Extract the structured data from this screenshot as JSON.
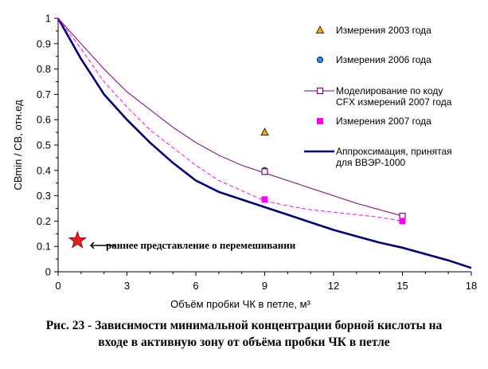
{
  "caption": {
    "line1": "Рис. 23 - Зависимости минимальной концентрации борной кислоты на",
    "line2": "входе в активную зону от объёма пробки ЧК в петле"
  },
  "note": {
    "arrow": "🡐",
    "text": "раннее представление о перемешивании"
  },
  "colors": {
    "m2003": "#FFA500",
    "m2006": "#1E90FF",
    "cfx": "#800080",
    "m2007": "#FF00FF",
    "approx": "#000080",
    "star": "#E31E1E"
  },
  "chart_data": {
    "type": "line",
    "xlabel": "Объём пробки ЧК в петле, м³",
    "ylabel": "СBmin / СB, отн.ед",
    "xlim": [
      0,
      18
    ],
    "ylim": [
      0,
      1
    ],
    "xticks": [
      "0",
      "3",
      "6",
      "9",
      "12",
      "15",
      "18"
    ],
    "yticks": [
      "0",
      "0.1",
      "0.2",
      "0.3",
      "0.4",
      "0.5",
      "0.6",
      "0.7",
      "0.8",
      "0.9",
      "1"
    ],
    "legend": [
      {
        "key": "m2003",
        "label": "Измерения 2003 года",
        "marker": "triangle"
      },
      {
        "key": "m2006",
        "label": "Измерения 2006 года",
        "marker": "circle"
      },
      {
        "key": "cfx",
        "label": "Моделирование по коду",
        "label2": "CFX измерений 2007 года",
        "marker": "open-square"
      },
      {
        "key": "m2007",
        "label": "Измерения 2007 года",
        "marker": "square"
      },
      {
        "key": "approx",
        "label": "Аппроксимация, принятая",
        "label2": "для ВВЭР-1000",
        "marker": "line"
      }
    ],
    "series": [
      {
        "key": "approx",
        "name": "Аппроксимация, принятая для ВВЭР-1000",
        "x": [
          0,
          0.5,
          1,
          1.5,
          2,
          3,
          4,
          5,
          6,
          7,
          8,
          9,
          10,
          11,
          12,
          13,
          14,
          15,
          16,
          17,
          18
        ],
        "y": [
          1,
          0.92,
          0.84,
          0.77,
          0.7,
          0.6,
          0.51,
          0.43,
          0.36,
          0.315,
          0.285,
          0.255,
          0.225,
          0.195,
          0.165,
          0.14,
          0.115,
          0.095,
          0.07,
          0.045,
          0.015
        ]
      },
      {
        "key": "cfx",
        "name": "Моделирование по коду CFX измерений 2007 года",
        "x": [
          0,
          1,
          2,
          3,
          4,
          5,
          6,
          7,
          8,
          9,
          10,
          11,
          12,
          13,
          14,
          15
        ],
        "y": [
          1,
          0.9,
          0.8,
          0.71,
          0.64,
          0.57,
          0.51,
          0.46,
          0.42,
          0.39,
          0.36,
          0.33,
          0.3,
          0.27,
          0.245,
          0.22
        ]
      },
      {
        "key": "m2007",
        "name": "Измерения 2007 года",
        "x": [
          0,
          1,
          2,
          3,
          4,
          5,
          6,
          7,
          8,
          9,
          10,
          11,
          12,
          13,
          14,
          15
        ],
        "y": [
          1,
          0.88,
          0.75,
          0.65,
          0.56,
          0.49,
          0.42,
          0.36,
          0.32,
          0.28,
          0.26,
          0.245,
          0.235,
          0.225,
          0.215,
          0.2
        ]
      }
    ],
    "points": [
      {
        "key": "m2003",
        "marker": "triangle",
        "x": 9,
        "y": 0.55
      },
      {
        "key": "m2006",
        "marker": "circle",
        "x": 9,
        "y": 0.4
      },
      {
        "key": "cfx",
        "marker": "open-square",
        "x": 9,
        "y": 0.395
      },
      {
        "key": "cfx",
        "marker": "open-square",
        "x": 15,
        "y": 0.22
      },
      {
        "key": "m2007",
        "marker": "square",
        "x": 9,
        "y": 0.285
      },
      {
        "key": "m2007",
        "marker": "square",
        "x": 15,
        "y": 0.2
      }
    ],
    "star_point": {
      "x": 0.6,
      "y": 0.12
    }
  }
}
